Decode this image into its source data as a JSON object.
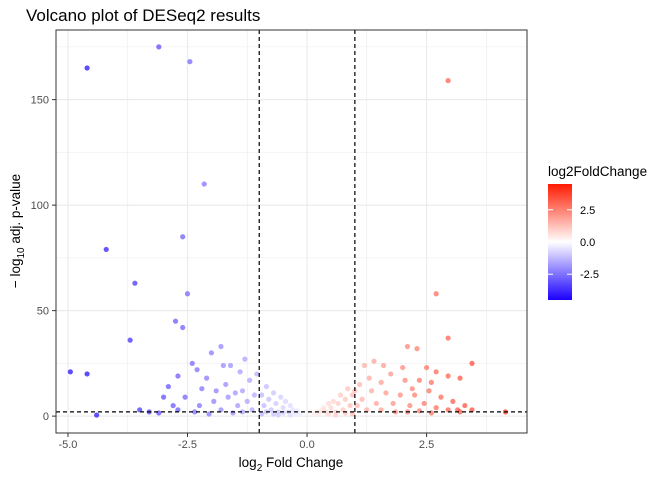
{
  "chart_data": {
    "type": "scatter",
    "title": "Volcano plot of DESeq2 results",
    "xlabel": {
      "prefix": "log",
      "sub": "2",
      "suffix": " Fold Change"
    },
    "ylabel": {
      "prefix": "− log",
      "sub": "10",
      "suffix": " adj. p-value"
    },
    "xlim": [
      -5.25,
      4.6
    ],
    "ylim": [
      -8,
      183
    ],
    "x_ticks": [
      {
        "value": -5.0,
        "label": "-5.0"
      },
      {
        "value": -2.5,
        "label": "-2.5"
      },
      {
        "value": 0.0,
        "label": "0.0"
      },
      {
        "value": 2.5,
        "label": "2.5"
      }
    ],
    "y_ticks": [
      {
        "value": 0,
        "label": "0"
      },
      {
        "value": 50,
        "label": "50"
      },
      {
        "value": 100,
        "label": "100"
      },
      {
        "value": 150,
        "label": "150"
      }
    ],
    "grid": true,
    "thresholds": {
      "vlines": [
        -1,
        1
      ],
      "hline": 2
    },
    "legend": {
      "title": "log2FoldChange",
      "position": "right",
      "ticks": [
        {
          "value": 2.5,
          "label": "2.5"
        },
        {
          "value": 0.0,
          "label": "0.0"
        },
        {
          "value": -2.5,
          "label": "-2.5"
        }
      ],
      "range": [
        -4.5,
        4.5
      ]
    },
    "colors": {
      "low": "#1a00ff",
      "mid": "#ffffff",
      "high": "#ff1a00",
      "panel_border": "#333333",
      "grid": "#ebebeb"
    },
    "points": [
      [
        -3.1,
        175
      ],
      [
        -2.45,
        168
      ],
      [
        -4.6,
        165
      ],
      [
        -2.15,
        110
      ],
      [
        -4.2,
        79
      ],
      [
        -2.6,
        85
      ],
      [
        -3.6,
        63
      ],
      [
        -2.5,
        58
      ],
      [
        -3.7,
        36
      ],
      [
        -2.75,
        45
      ],
      [
        -2.6,
        42
      ],
      [
        -4.95,
        21
      ],
      [
        -4.6,
        20
      ],
      [
        -4.4,
        0.5
      ],
      [
        2.95,
        159
      ],
      [
        2.7,
        58
      ],
      [
        2.95,
        37
      ],
      [
        3.45,
        25
      ],
      [
        3.2,
        18
      ],
      [
        4.15,
        2
      ],
      [
        -2.9,
        14
      ],
      [
        -2.7,
        19
      ],
      [
        -2.3,
        22
      ],
      [
        -2.1,
        18
      ],
      [
        -2.0,
        30
      ],
      [
        -1.8,
        33
      ],
      [
        -1.6,
        24
      ],
      [
        -1.4,
        21
      ],
      [
        -1.3,
        27
      ],
      [
        -1.2,
        17
      ],
      [
        -1.05,
        20
      ],
      [
        -2.4,
        25
      ],
      [
        -2.2,
        13
      ],
      [
        -1.9,
        12
      ],
      [
        -1.7,
        15
      ],
      [
        -1.5,
        11
      ],
      [
        -2.8,
        5
      ],
      [
        -3.3,
        2
      ],
      [
        -3.0,
        9
      ],
      [
        -2.55,
        9
      ],
      [
        -2.25,
        5
      ],
      [
        -1.95,
        7
      ],
      [
        -1.65,
        9
      ],
      [
        -1.45,
        5
      ],
      [
        -1.25,
        7
      ],
      [
        -3.5,
        3
      ],
      [
        -3.1,
        1.5
      ],
      [
        -2.7,
        3
      ],
      [
        -2.35,
        2
      ],
      [
        -2.05,
        1
      ],
      [
        -1.8,
        3
      ],
      [
        -1.55,
        1.5
      ],
      [
        -1.35,
        2
      ],
      [
        -1.15,
        3
      ],
      [
        -1.75,
        24
      ],
      [
        -1.35,
        12
      ],
      [
        -1.1,
        10
      ],
      [
        -0.95,
        10
      ],
      [
        -0.9,
        5
      ],
      [
        -0.85,
        14
      ],
      [
        -0.8,
        8
      ],
      [
        -0.75,
        3
      ],
      [
        -0.7,
        11
      ],
      [
        -0.65,
        6
      ],
      [
        -0.6,
        2
      ],
      [
        -0.55,
        9
      ],
      [
        -0.5,
        4
      ],
      [
        -0.45,
        7
      ],
      [
        -0.4,
        2
      ],
      [
        -0.35,
        5
      ],
      [
        -0.3,
        3
      ],
      [
        -0.25,
        1.5
      ],
      [
        -0.2,
        2.5
      ],
      [
        -0.15,
        1
      ],
      [
        -0.95,
        1
      ],
      [
        -0.85,
        2
      ],
      [
        -0.7,
        1
      ],
      [
        -0.5,
        1.5
      ],
      [
        -0.35,
        0.5
      ],
      [
        -0.6,
        0.5
      ],
      [
        1.2,
        24
      ],
      [
        1.4,
        26
      ],
      [
        1.6,
        24
      ],
      [
        2.1,
        33
      ],
      [
        2.3,
        32
      ],
      [
        2.0,
        23
      ],
      [
        2.5,
        23
      ],
      [
        2.7,
        21
      ],
      [
        2.95,
        19
      ],
      [
        2.35,
        17
      ],
      [
        2.05,
        17
      ],
      [
        1.75,
        20
      ],
      [
        1.55,
        16
      ],
      [
        1.3,
        18
      ],
      [
        1.1,
        15
      ],
      [
        1.0,
        12
      ],
      [
        1.35,
        12
      ],
      [
        1.65,
        11
      ],
      [
        1.95,
        10
      ],
      [
        2.25,
        10
      ],
      [
        2.55,
        12
      ],
      [
        2.8,
        9
      ],
      [
        3.05,
        7
      ],
      [
        3.3,
        5
      ],
      [
        3.45,
        3
      ],
      [
        1.15,
        8
      ],
      [
        1.45,
        6
      ],
      [
        1.8,
        6
      ],
      [
        2.15,
        5
      ],
      [
        2.45,
        6
      ],
      [
        2.7,
        4
      ],
      [
        2.95,
        3
      ],
      [
        3.2,
        2
      ],
      [
        1.05,
        5
      ],
      [
        1.25,
        3
      ],
      [
        1.55,
        3
      ],
      [
        1.85,
        2
      ],
      [
        2.1,
        2
      ],
      [
        2.35,
        2.5
      ],
      [
        2.6,
        1.5
      ],
      [
        3.15,
        3
      ],
      [
        2.2,
        13
      ],
      [
        2.6,
        16
      ],
      [
        0.95,
        10
      ],
      [
        0.9,
        5
      ],
      [
        0.85,
        13
      ],
      [
        0.8,
        8
      ],
      [
        0.75,
        3
      ],
      [
        0.7,
        10
      ],
      [
        0.65,
        6
      ],
      [
        0.6,
        2
      ],
      [
        0.55,
        7
      ],
      [
        0.5,
        4
      ],
      [
        0.45,
        6
      ],
      [
        0.4,
        2
      ],
      [
        0.35,
        4
      ],
      [
        0.3,
        2.5
      ],
      [
        0.25,
        1.5
      ],
      [
        0.2,
        2
      ],
      [
        0.15,
        1
      ],
      [
        0.95,
        1
      ],
      [
        0.8,
        1.5
      ],
      [
        0.6,
        0.5
      ],
      [
        0.45,
        1
      ]
    ]
  }
}
